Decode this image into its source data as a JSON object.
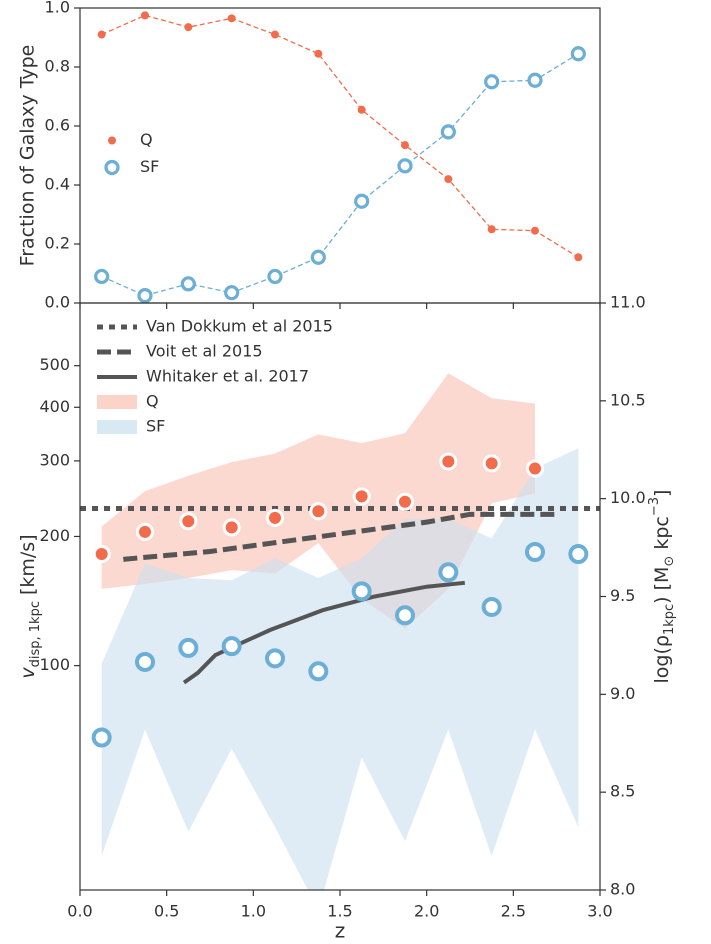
{
  "chart_data": [
    {
      "type": "line",
      "ylabel": "Fraction of Galaxy Type",
      "x": [
        0.125,
        0.375,
        0.625,
        0.875,
        1.125,
        1.375,
        1.625,
        1.875,
        2.125,
        2.375,
        2.625,
        2.875
      ],
      "xlim": [
        0,
        3
      ],
      "xticks": [
        0,
        0.5,
        1,
        1.5,
        2,
        2.5,
        3
      ],
      "xticklabels": false,
      "ylim": [
        0,
        1
      ],
      "yticks": [
        {
          "value": 0,
          "label": "0.0"
        },
        0.2,
        0.4,
        0.6,
        0.8,
        {
          "value": 1,
          "label": "1.0"
        }
      ],
      "legend": "center left",
      "series": [
        {
          "name": "Q",
          "color": "#f26b4b",
          "marker": "dot",
          "values": [
            0.91,
            0.975,
            0.935,
            0.965,
            0.91,
            0.845,
            0.655,
            0.535,
            0.42,
            0.25,
            0.245,
            0.155
          ]
        },
        {
          "name": "SF",
          "color": "#6baed6",
          "marker": "ring",
          "values": [
            0.09,
            0.025,
            0.065,
            0.035,
            0.09,
            0.155,
            0.345,
            0.465,
            0.58,
            0.75,
            0.755,
            0.845
          ]
        }
      ]
    },
    {
      "type": "scatter",
      "xlabel": "z",
      "ylabel": {
        "main": "v",
        "sub": "disp, 1kpc",
        "unit": "[km/s]"
      },
      "y2label": {
        "pre": "log(ρ",
        "sub": "1kpc",
        "post": ") [M",
        "sun": "⊙",
        "mid": " kpc",
        "sup": "−3",
        "end": "]"
      },
      "x": [
        0.125,
        0.375,
        0.625,
        0.875,
        1.125,
        1.375,
        1.625,
        1.875,
        2.125,
        2.375,
        2.625,
        2.875
      ],
      "xlim": [
        0,
        3
      ],
      "xticks": [
        {
          "value": 0,
          "label": "0.0"
        },
        0.5,
        {
          "value": 1,
          "label": "1.0"
        },
        1.5,
        {
          "value": 2,
          "label": "2.0"
        },
        2.5,
        {
          "value": 3,
          "label": "3.0"
        }
      ],
      "ylim": [
        30,
        700
      ],
      "ylog": true,
      "yticks": [
        100,
        200,
        300,
        400,
        500
      ],
      "y2lim": [
        8,
        11
      ],
      "y2ticks": [
        {
          "value": 8,
          "label": "8.0"
        },
        8.5,
        {
          "value": 9,
          "label": "9.0"
        },
        9.5,
        {
          "value": 10,
          "label": "10.0"
        },
        10.5,
        {
          "value": 11,
          "label": "11.0"
        }
      ],
      "legend": "upper left",
      "lines": [
        {
          "name": "Van Dokkum et al 2015",
          "color": "#555555",
          "style": "dotted",
          "axis": "y2",
          "x": [
            0,
            3
          ],
          "values": [
            9.95,
            9.95
          ]
        },
        {
          "name": "Voit et al 2015",
          "color": "#555555",
          "style": "dashed",
          "axis": "y2",
          "x": [
            0.25,
            0.5,
            0.75,
            1.0,
            1.25,
            1.5,
            1.75,
            2.0,
            2.25,
            2.5,
            2.75
          ],
          "values": [
            9.69,
            9.71,
            9.73,
            9.76,
            9.79,
            9.82,
            9.85,
            9.88,
            9.92,
            9.92,
            9.92
          ]
        },
        {
          "name": "Whitaker et al. 2017",
          "color": "#555555",
          "style": "solid",
          "axis": "y2",
          "x": [
            0.6,
            0.68,
            0.78,
            0.9,
            1.1,
            1.4,
            1.7,
            2.0,
            2.22
          ],
          "values": [
            9.06,
            9.11,
            9.2,
            9.25,
            9.33,
            9.43,
            9.5,
            9.55,
            9.57
          ]
        }
      ],
      "bands": [
        {
          "name": "Q",
          "color": "#f9c0b0",
          "upper": [
            211,
            255,
            277,
            298,
            312,
            346,
            330,
            348,
            480,
            420,
            408,
            null
          ],
          "lower": [
            151,
            155,
            160,
            167,
            164,
            193,
            143,
            122,
            151,
            239,
            252,
            null
          ]
        },
        {
          "name": "SF",
          "color": "#c9dff0",
          "upper": [
            101,
            173,
            160,
            158,
            178,
            160,
            178,
            220,
            220,
            198,
            288,
            321
          ],
          "lower": [
            36,
            71,
            41,
            64,
            42,
            27,
            61,
            39,
            71,
            36,
            71,
            42
          ]
        }
      ],
      "series": [
        {
          "color": "#f26b4b",
          "marker": "dot",
          "values": [
            182,
            205,
            217,
            210,
            221,
            229,
            248,
            241,
            299,
            296,
            288,
            null
          ]
        },
        {
          "color": "#6baed6",
          "marker": "ring",
          "values": [
            68,
            102,
            110,
            111,
            104,
            97,
            149,
            131,
            165,
            137,
            184,
            182
          ]
        }
      ]
    }
  ]
}
